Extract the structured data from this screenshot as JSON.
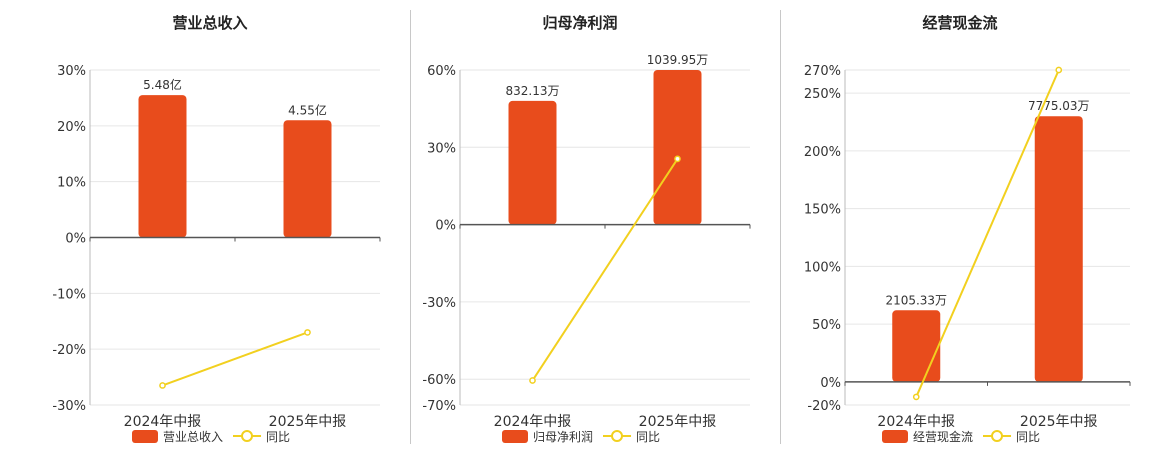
{
  "chart_data": [
    {
      "type": "bar",
      "title": "营业总收入",
      "categories": [
        "2024年中报",
        "2025年中报"
      ],
      "series": [
        {
          "name": "营业总收入",
          "type": "bar",
          "values": [
            25.5,
            21.0
          ],
          "labels": [
            "5.48亿",
            "4.55亿"
          ],
          "color": "#e84c1c"
        },
        {
          "name": "同比",
          "type": "line",
          "values": [
            -26.5,
            -17.0
          ],
          "color": "#f2d01f"
        }
      ],
      "ylim": [
        -30,
        30
      ],
      "yticks": [
        30,
        20,
        10,
        0,
        -10,
        -20,
        -30
      ],
      "ytick_labels": [
        "30%",
        "20%",
        "10%",
        "0%",
        "-10%",
        "-20%",
        "-30%"
      ],
      "grid": true,
      "legend": "bottom"
    },
    {
      "type": "bar",
      "title": "归母净利润",
      "categories": [
        "2024年中报",
        "2025年中报"
      ],
      "series": [
        {
          "name": "归母净利润",
          "type": "bar",
          "values": [
            48,
            60
          ],
          "labels": [
            "832.13万",
            "1039.95万"
          ],
          "color": "#e84c1c"
        },
        {
          "name": "同比",
          "type": "line",
          "values": [
            -60.5,
            25.5
          ],
          "color": "#f2d01f"
        }
      ],
      "ylim": [
        -70,
        60
      ],
      "yticks": [
        60,
        30,
        0,
        -30,
        -60,
        -70
      ],
      "ytick_labels": [
        "60%",
        "30%",
        "0%",
        "-30%",
        "-60%",
        "-70%"
      ],
      "grid": true,
      "legend": "bottom"
    },
    {
      "type": "bar",
      "title": "经营现金流",
      "categories": [
        "2024年中报",
        "2025年中报"
      ],
      "series": [
        {
          "name": "经营现金流",
          "type": "bar",
          "values": [
            62,
            230
          ],
          "labels": [
            "2105.33万",
            "7775.03万"
          ],
          "color": "#e84c1c"
        },
        {
          "name": "同比",
          "type": "line",
          "values": [
            -13,
            270
          ],
          "color": "#f2d01f"
        }
      ],
      "ylim": [
        -20,
        270
      ],
      "yticks": [
        270,
        250,
        200,
        150,
        100,
        50,
        0,
        -20
      ],
      "ytick_labels": [
        "270%",
        "250%",
        "200%",
        "150%",
        "100%",
        "50%",
        "0%",
        "-20%"
      ],
      "grid": true,
      "legend": "bottom"
    }
  ]
}
